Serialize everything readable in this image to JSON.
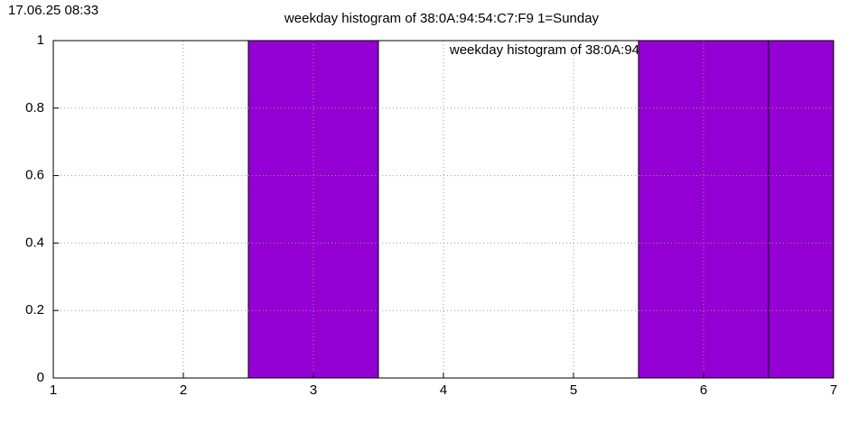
{
  "timestamp": "17.06.25 08:33",
  "chart_data": {
    "type": "bar",
    "title": "weekday histogram of 38:0A:94:54:C7:F9 1=Sunday",
    "x": [
      3,
      6,
      7
    ],
    "series": [
      {
        "name": "weekday histogram of 38:0A:94",
        "color": "#9400d3",
        "values": [
          1,
          1,
          1
        ]
      }
    ],
    "xlim": [
      1,
      7
    ],
    "xticks": [
      1,
      2,
      3,
      4,
      5,
      6,
      7
    ],
    "ylim": [
      0,
      1
    ],
    "yticks": [
      0,
      0.2,
      0.4,
      0.6,
      0.8,
      1
    ],
    "grid": true,
    "legend": "top-right"
  }
}
